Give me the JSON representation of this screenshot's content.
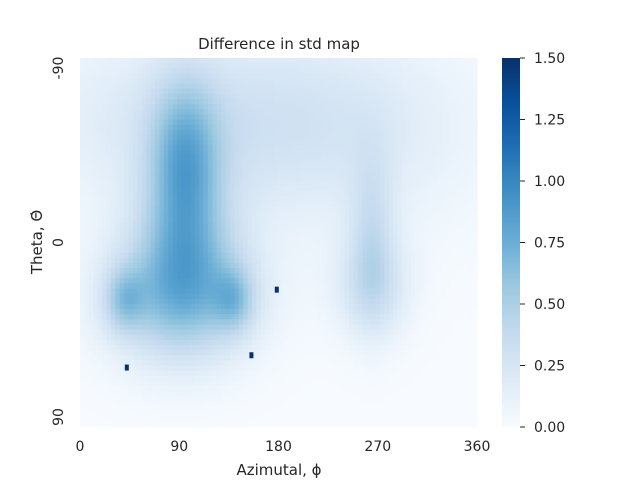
{
  "chart_data": {
    "type": "heatmap",
    "title": "Difference in std map",
    "xlabel": "Azimutal, ϕ",
    "ylabel": "Theta, Θ̇",
    "x_ticks": [
      "0",
      "90",
      "180",
      "270",
      "360"
    ],
    "y_ticks": [
      "-90",
      "0",
      "90"
    ],
    "xlim": [
      0,
      360
    ],
    "ylim": [
      -90,
      90
    ],
    "y_inverted": true,
    "colorbar": {
      "colormap": "Blues",
      "range": [
        0,
        1.5
      ],
      "ticks": [
        "0.00",
        "0.25",
        "0.50",
        "0.75",
        "1.00",
        "1.25",
        "1.50"
      ]
    },
    "colors": {
      "low": "#f7fbff",
      "high": "#08306b"
    },
    "background_field": [
      {
        "phi": 130,
        "theta": -60,
        "sigma_phi": 120,
        "sigma_theta": 30,
        "value": 0.25
      },
      {
        "phi": 240,
        "theta": -50,
        "sigma_phi": 90,
        "sigma_theta": 40,
        "value": 0.1
      }
    ],
    "features": [
      {
        "phi": 95,
        "theta": -40,
        "sigma_phi": 22,
        "sigma_theta": 28,
        "value": 0.55
      },
      {
        "phi": 95,
        "theta": 5,
        "sigma_phi": 34,
        "sigma_theta": 28,
        "value": 0.45
      },
      {
        "phi": 90,
        "theta": 28,
        "sigma_phi": 48,
        "sigma_theta": 22,
        "value": 0.45
      },
      {
        "phi": 40,
        "theta": 28,
        "sigma_phi": 13,
        "sigma_theta": 11,
        "value": 0.35
      },
      {
        "phi": 140,
        "theta": 28,
        "sigma_phi": 13,
        "sigma_theta": 11,
        "value": 0.35
      },
      {
        "phi": 265,
        "theta": -5,
        "sigma_phi": 14,
        "sigma_theta": 28,
        "value": 0.25
      },
      {
        "phi": 265,
        "theta": 22,
        "sigma_phi": 24,
        "sigma_theta": 18,
        "value": 0.28
      }
    ],
    "outlier_cells": [
      {
        "phi": 178,
        "theta": 23,
        "value": 1.5
      },
      {
        "phi": 155,
        "theta": 55,
        "value": 1.5
      },
      {
        "phi": 42,
        "theta": 61,
        "value": 1.5
      }
    ]
  }
}
